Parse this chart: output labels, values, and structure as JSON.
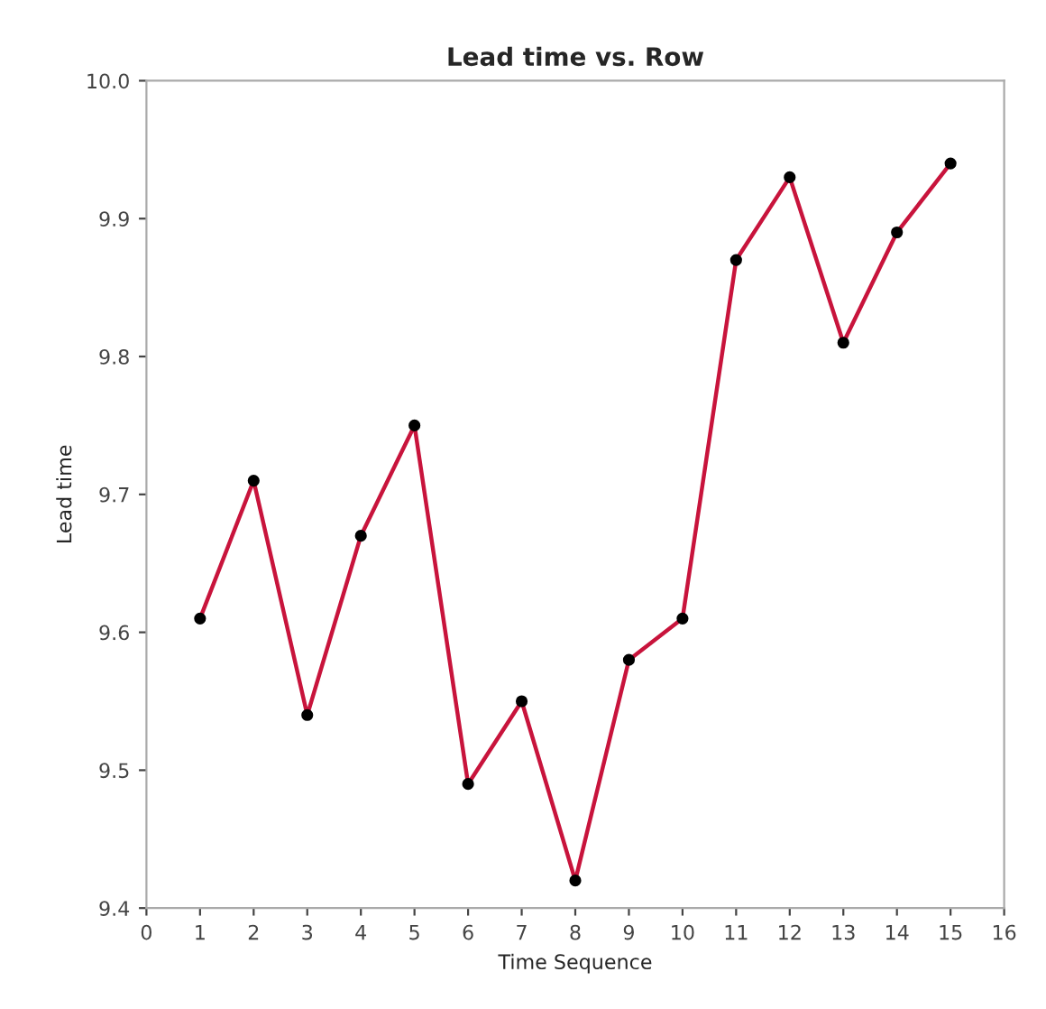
{
  "chart_data": {
    "type": "line",
    "title": "Lead time vs. Row",
    "xlabel": "Time Sequence",
    "ylabel": "Lead time",
    "x": [
      1,
      2,
      3,
      4,
      5,
      6,
      7,
      8,
      9,
      10,
      11,
      12,
      13,
      14,
      15
    ],
    "series": [
      {
        "color": "#c8143c",
        "values": [
          9.61,
          9.71,
          9.54,
          9.67,
          9.75,
          9.49,
          9.55,
          9.42,
          9.58,
          9.61,
          9.87,
          9.93,
          9.81,
          9.89,
          9.94
        ]
      }
    ],
    "xlim": [
      0,
      16
    ],
    "xticks": [
      0,
      1,
      2,
      3,
      4,
      5,
      6,
      7,
      8,
      9,
      10,
      11,
      12,
      13,
      14,
      15,
      16
    ],
    "ylim": [
      9.4,
      10.0
    ],
    "yticks": [
      9.4,
      9.5,
      9.6,
      9.7,
      9.8,
      9.9,
      {
        "value": 10.0,
        "label": "10.0"
      }
    ],
    "grid": false,
    "legend": false,
    "marker": "circle",
    "line_style": "solid"
  }
}
